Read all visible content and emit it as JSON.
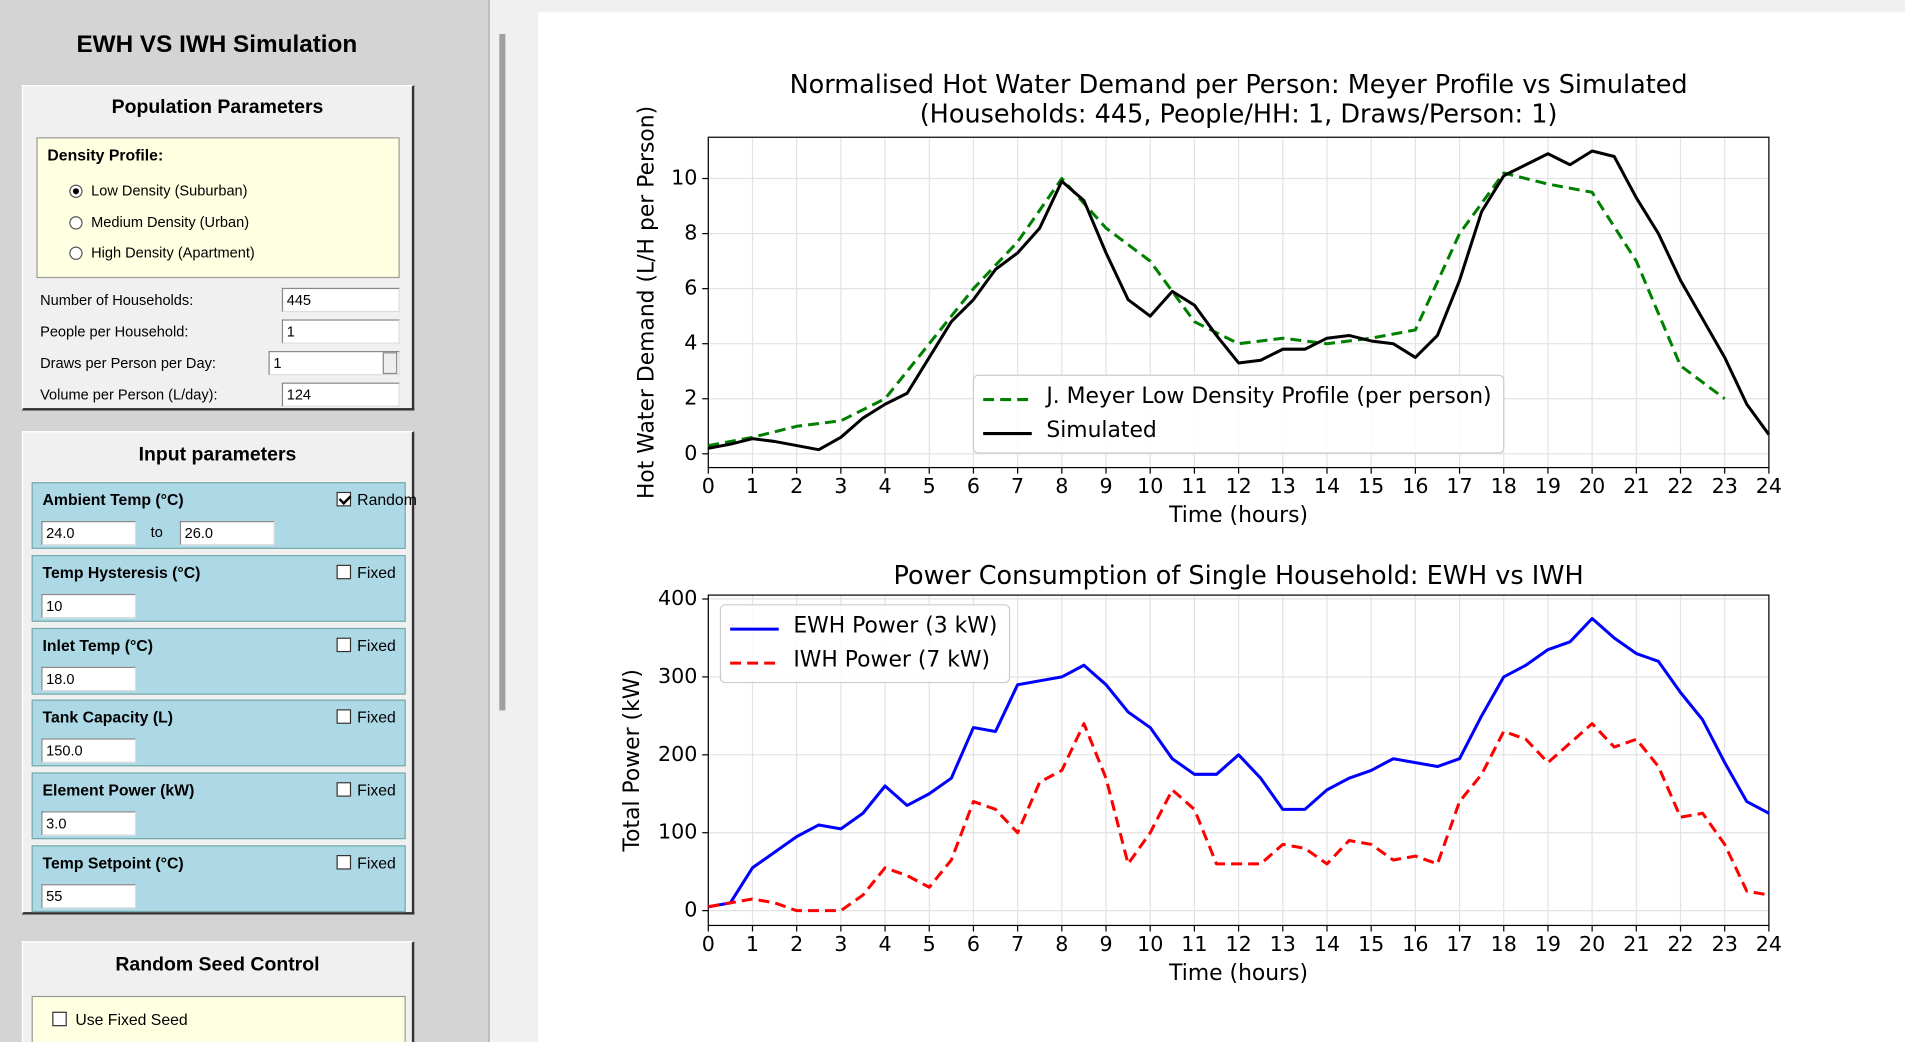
{
  "app": {
    "title": "EWH VS IWH Simulation"
  },
  "population": {
    "title": "Population Parameters",
    "density_label": "Density Profile:",
    "options": [
      "Low Density (Suburban)",
      "Medium Density (Urban)",
      "High Density (Apartment)"
    ],
    "selected": 0,
    "fields": [
      {
        "label": "Number of Households:",
        "value": "445"
      },
      {
        "label": "People per Household:",
        "value": "1"
      },
      {
        "label": "Draws per Person per Day:",
        "value": "1",
        "control": "spinbox"
      },
      {
        "label": "Volume per Person (L/day):",
        "value": "124"
      }
    ]
  },
  "inputs": {
    "title": "Input parameters",
    "groups": [
      {
        "label": "Ambient Temp (°C)",
        "option": "Random",
        "checked": true,
        "values": [
          "24.0",
          "26.0"
        ],
        "range_word": "to"
      },
      {
        "label": "Temp Hysteresis (°C)",
        "option": "Fixed",
        "checked": false,
        "values": [
          "10"
        ]
      },
      {
        "label": "Inlet Temp (°C)",
        "option": "Fixed",
        "checked": false,
        "values": [
          "18.0"
        ]
      },
      {
        "label": "Tank Capacity (L)",
        "option": "Fixed",
        "checked": false,
        "values": [
          "150.0"
        ]
      },
      {
        "label": "Element Power (kW)",
        "option": "Fixed",
        "checked": false,
        "values": [
          "3.0"
        ]
      },
      {
        "label": "Temp Setpoint (°C)",
        "option": "Fixed",
        "checked": false,
        "values": [
          "55"
        ]
      }
    ]
  },
  "seed": {
    "title": "Random Seed Control",
    "option": "Use Fixed Seed",
    "checked": false
  },
  "chart_data": [
    {
      "type": "line",
      "title": "Normalised Hot Water Demand per Person: Meyer Profile vs Simulated",
      "subtitle": "(Households: 445, People/HH: 1, Draws/Person: 1)",
      "x_label": "Time (hours)",
      "y_label": "Hot Water Demand (L/H per Person)",
      "xlim": [
        0,
        24
      ],
      "ylim": [
        -0.5,
        11.5
      ],
      "xticks": [
        0,
        1,
        2,
        3,
        4,
        5,
        6,
        7,
        8,
        9,
        10,
        11,
        12,
        13,
        14,
        15,
        16,
        17,
        18,
        19,
        20,
        21,
        22,
        23,
        24
      ],
      "yticks": [
        0,
        2,
        4,
        6,
        8,
        10
      ],
      "grid": true,
      "legend": "lower center",
      "series": [
        {
          "name": "J. Meyer Low Density Profile (per person)",
          "color": "#008000",
          "linestyle": "dashed",
          "x": [
            0,
            1,
            2,
            3,
            4,
            5,
            6,
            7,
            8,
            9,
            10,
            11,
            12,
            13,
            14,
            15,
            16,
            17,
            18,
            19,
            20,
            21,
            22,
            23
          ],
          "values": [
            0.3,
            0.6,
            1.0,
            1.2,
            2.0,
            4.0,
            6.0,
            7.7,
            10.0,
            8.2,
            7.0,
            4.8,
            4.0,
            4.2,
            4.0,
            4.2,
            4.5,
            8.0,
            10.2,
            9.8,
            9.5,
            7.0,
            3.2,
            2.0
          ]
        },
        {
          "name": "Simulated",
          "color": "#000000",
          "linestyle": "solid",
          "x": [
            0,
            0.5,
            1,
            1.5,
            2,
            2.5,
            3,
            3.5,
            4,
            4.5,
            5,
            5.5,
            6,
            6.5,
            7,
            7.5,
            8,
            8.5,
            9,
            9.5,
            10,
            10.5,
            11,
            11.5,
            12,
            12.5,
            13,
            13.5,
            14,
            14.5,
            15,
            15.5,
            16,
            16.5,
            17,
            17.5,
            18,
            18.5,
            19,
            19.5,
            20,
            20.5,
            21,
            21.5,
            22,
            22.5,
            23,
            23.5,
            24
          ],
          "values": [
            0.2,
            0.35,
            0.55,
            0.45,
            0.3,
            0.15,
            0.6,
            1.3,
            1.8,
            2.2,
            3.5,
            4.8,
            5.6,
            6.7,
            7.3,
            8.2,
            9.9,
            9.2,
            7.3,
            5.6,
            5.0,
            5.9,
            5.4,
            4.3,
            3.3,
            3.4,
            3.8,
            3.8,
            4.2,
            4.3,
            4.1,
            4.0,
            3.5,
            4.3,
            6.3,
            8.8,
            10.1,
            10.5,
            10.9,
            10.5,
            11.0,
            10.8,
            9.3,
            8.0,
            6.3,
            4.9,
            3.5,
            1.8,
            0.7
          ]
        }
      ]
    },
    {
      "type": "line",
      "title": "Power Consumption of Single Household: EWH vs IWH",
      "x_label": "Time (hours)",
      "y_label": "Total Power (kW)",
      "xlim": [
        0,
        24
      ],
      "ylim": [
        -19,
        405
      ],
      "xticks": [
        0,
        1,
        2,
        3,
        4,
        5,
        6,
        7,
        8,
        9,
        10,
        11,
        12,
        13,
        14,
        15,
        16,
        17,
        18,
        19,
        20,
        21,
        22,
        23,
        24
      ],
      "yticks": [
        0,
        100,
        200,
        300,
        400
      ],
      "grid": true,
      "legend": "upper left",
      "x": [
        0,
        0.5,
        1,
        1.5,
        2,
        2.5,
        3,
        3.5,
        4,
        4.5,
        5,
        5.5,
        6,
        6.5,
        7,
        7.5,
        8,
        8.5,
        9,
        9.5,
        10,
        10.5,
        11,
        11.5,
        12,
        12.5,
        13,
        13.5,
        14,
        14.5,
        15,
        15.5,
        16,
        16.5,
        17,
        17.5,
        18,
        18.5,
        19,
        19.5,
        20,
        20.5,
        21,
        21.5,
        22,
        22.5,
        23,
        23.5,
        24
      ],
      "series": [
        {
          "name": "EWH Power (3 kW)",
          "color": "#0000ff",
          "linestyle": "solid",
          "values": [
            5,
            10,
            55,
            75,
            95,
            110,
            105,
            125,
            160,
            135,
            150,
            170,
            235,
            230,
            290,
            295,
            300,
            315,
            290,
            255,
            235,
            195,
            175,
            175,
            200,
            170,
            130,
            130,
            155,
            170,
            180,
            195,
            190,
            185,
            195,
            250,
            300,
            315,
            335,
            345,
            375,
            350,
            330,
            320,
            280,
            245,
            190,
            140,
            125
          ]
        },
        {
          "name": "IWH Power (7 kW)",
          "color": "#ff0000",
          "linestyle": "dashed",
          "values": [
            5,
            10,
            15,
            10,
            0,
            0,
            0,
            20,
            55,
            45,
            30,
            65,
            140,
            130,
            100,
            165,
            180,
            240,
            170,
            60,
            100,
            155,
            130,
            60,
            60,
            60,
            85,
            80,
            60,
            90,
            85,
            65,
            70,
            60,
            140,
            175,
            230,
            220,
            190,
            215,
            240,
            210,
            220,
            185,
            120,
            125,
            85,
            25,
            20
          ]
        }
      ]
    }
  ]
}
